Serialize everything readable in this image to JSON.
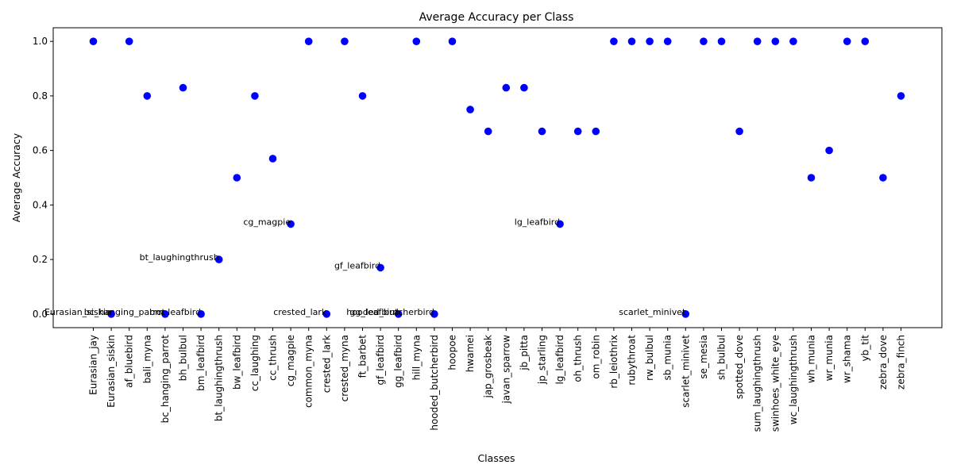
{
  "chart_data": {
    "type": "scatter",
    "title": "Average Accuracy per Class",
    "xlabel": "Classes",
    "ylabel": "Average Accuracy",
    "ylim": [
      -0.05,
      1.05
    ],
    "yticks": [
      "0.0",
      "0.2",
      "0.4",
      "0.6",
      "0.8",
      "1.0"
    ],
    "grid": false,
    "marker_color": "#0000ff",
    "categories": [
      "Eurasian_jay",
      "Eurasian_siskin",
      "af_bluebird",
      "bali_myna",
      "bc_hanging_parrot",
      "bh_bulbul",
      "bm_leafbird",
      "bt_laughingthrush",
      "bw_leafbird",
      "cc_laughing",
      "cc_thrush",
      "cg_magpie",
      "common_myna",
      "crested_lark",
      "crested_myna",
      "ft_barbet",
      "gf_leafbird",
      "gg_leafbird",
      "hill_myna",
      "hooded_butcherbird",
      "hoopoe",
      "hwamei",
      "jap_grosbeak",
      "javan_sparrow",
      "jb_pitta",
      "jp_starling",
      "lg_leafbird",
      "oh_thrush",
      "om_robin",
      "rb_leiothrix",
      "rubythroat",
      "rw_bulbul",
      "sb_munia",
      "scarlet_minivet",
      "se_mesia",
      "sh_bulbul",
      "spotted_dove",
      "sum_laughingthrush",
      "swinhoes_white_eye",
      "wc_laughingthrush",
      "wh_munia",
      "wr_munia",
      "wr_shama",
      "yb_tit",
      "zebra_dove",
      "zebra_finch"
    ],
    "values": [
      1.0,
      0.0,
      1.0,
      0.8,
      0.0,
      0.83,
      0.0,
      0.2,
      0.5,
      0.8,
      0.57,
      0.33,
      1.0,
      0.0,
      1.0,
      0.8,
      0.17,
      0.0,
      1.0,
      0.0,
      1.0,
      0.75,
      0.67,
      0.83,
      0.83,
      0.67,
      0.33,
      0.67,
      0.67,
      1.0,
      1.0,
      1.0,
      1.0,
      0.0,
      1.0,
      1.0,
      0.67,
      1.0,
      1.0,
      1.0,
      0.5,
      0.6,
      1.0,
      1.0,
      0.5,
      0.8
    ],
    "annotations": [
      {
        "label": "Eurasian_siskin",
        "x": "Eurasian_siskin",
        "y": 0.0
      },
      {
        "label": "bc_hanging_parrot",
        "x": "bc_hanging_parrot",
        "y": 0.0
      },
      {
        "label": "bm_leafbird",
        "x": "bm_leafbird",
        "y": 0.0
      },
      {
        "label": "bt_laughingthrush",
        "x": "bt_laughingthrush",
        "y": 0.2
      },
      {
        "label": "cg_magpie",
        "x": "cg_magpie",
        "y": 0.33
      },
      {
        "label": "crested_lark",
        "x": "crested_lark",
        "y": 0.0
      },
      {
        "label": "gf_leafbird",
        "x": "gf_leafbird",
        "y": 0.17
      },
      {
        "label": "gg_leafbird",
        "x": "gg_leafbird",
        "y": 0.0
      },
      {
        "label": "hooded_butcherbird",
        "x": "hooded_butcherbird",
        "y": 0.0
      },
      {
        "label": "lg_leafbird",
        "x": "lg_leafbird",
        "y": 0.33
      },
      {
        "label": "scarlet_minivet",
        "x": "scarlet_minivet",
        "y": 0.0
      }
    ]
  }
}
